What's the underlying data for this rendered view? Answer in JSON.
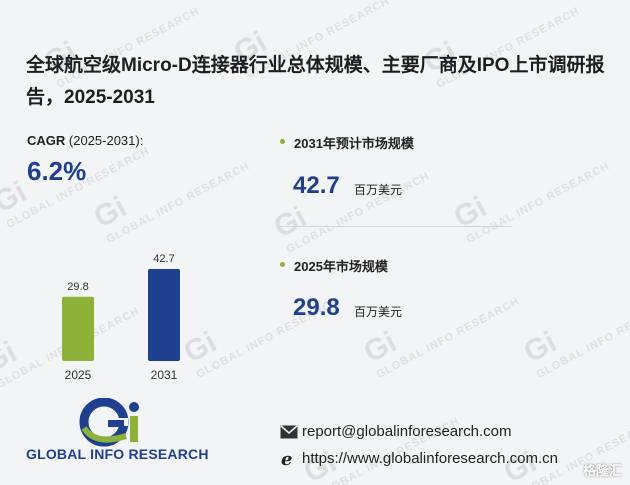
{
  "title": "全球航空级Micro-D连接器行业总体规模、主要厂商及IPO上市调研报告，2025-2031",
  "cagr": {
    "label_bold": "CAGR",
    "label_rest": " (2025-2031):",
    "value": "6.2%"
  },
  "stats": [
    {
      "label": "2031年预计市场规模",
      "value": "42.7",
      "unit": "百万美元"
    },
    {
      "label": "2025年市场规模",
      "value": "29.8",
      "unit": "百万美元"
    }
  ],
  "chart_data": {
    "type": "bar",
    "categories": [
      "2025",
      "2031"
    ],
    "values": [
      29.8,
      42.7
    ],
    "colors": [
      "#8cb23a",
      "#1f3f8f"
    ],
    "ylim": [
      0,
      42.7
    ],
    "title": "",
    "xlabel": "",
    "ylabel": ""
  },
  "brand": {
    "logo_text": "GLOBAL INFO RESEARCH",
    "primary_color": "#1f3f8f",
    "accent_color": "#8cb23a"
  },
  "contact": {
    "email_icon": "mail-icon",
    "email": "report@globalinforesearch.com",
    "web_icon": "ie-browser-icon",
    "web": "https://www.globalinforesearch.com.cn"
  },
  "corner_mark": "格隆汇"
}
